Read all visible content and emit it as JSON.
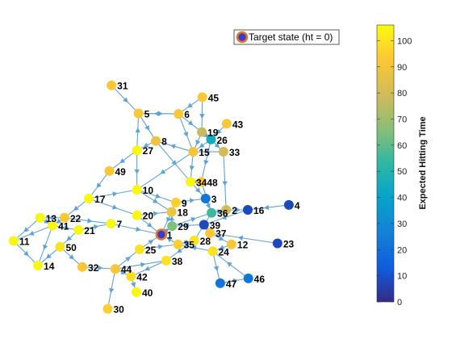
{
  "chart_data": {
    "type": "graph",
    "legend": {
      "label": "Target state (ht = 0)",
      "placement": "top-right"
    },
    "colorbar": {
      "label": "Expected  Hitting  Time",
      "min": 0,
      "max": 106,
      "ticks": [
        0,
        10,
        20,
        30,
        40,
        50,
        60,
        70,
        80,
        90,
        100
      ]
    },
    "nodes": [
      {
        "id": "1",
        "ht": 0,
        "x": -0.6,
        "y": -0.73
      },
      {
        "id": "2",
        "ht": 80,
        "x": 0.6,
        "y": -0.23
      },
      {
        "id": "3",
        "ht": 22,
        "x": 0.22,
        "y": 0.0
      },
      {
        "id": "4",
        "ht": 8,
        "x": 1.76,
        "y": -0.13
      },
      {
        "id": "5",
        "ht": 92,
        "x": -1.02,
        "y": 1.73
      },
      {
        "id": "6",
        "ht": 92,
        "x": -0.28,
        "y": 1.72
      },
      {
        "id": "7",
        "ht": 105,
        "x": -1.53,
        "y": -0.51
      },
      {
        "id": "8",
        "ht": 88,
        "x": -0.7,
        "y": 1.17
      },
      {
        "id": "9",
        "ht": 95,
        "x": -0.33,
        "y": -0.08
      },
      {
        "id": "10",
        "ht": 105,
        "x": -1.05,
        "y": 0.18
      },
      {
        "id": "11",
        "ht": 105,
        "x": -3.33,
        "y": -0.86
      },
      {
        "id": "12",
        "ht": 92,
        "x": 0.7,
        "y": -0.93
      },
      {
        "id": "13",
        "ht": 105,
        "x": -2.84,
        "y": -0.39
      },
      {
        "id": "14",
        "ht": 105,
        "x": -2.88,
        "y": -1.36
      },
      {
        "id": "15",
        "ht": 90,
        "x": -0.01,
        "y": 0.95
      },
      {
        "id": "16",
        "ht": 8,
        "x": 1.0,
        "y": -0.23
      },
      {
        "id": "17",
        "ht": 105,
        "x": -1.94,
        "y": 0.0
      },
      {
        "id": "18",
        "ht": 88,
        "x": -0.41,
        "y": -0.27
      },
      {
        "id": "19",
        "ht": 78,
        "x": 0.15,
        "y": 1.35
      },
      {
        "id": "20",
        "ht": 105,
        "x": -1.05,
        "y": -0.34
      },
      {
        "id": "21",
        "ht": 105,
        "x": -2.13,
        "y": -0.64
      },
      {
        "id": "22",
        "ht": 92,
        "x": -2.39,
        "y": -0.39
      },
      {
        "id": "23",
        "ht": 8,
        "x": 1.55,
        "y": -0.91
      },
      {
        "id": "24",
        "ht": 100,
        "x": 0.35,
        "y": -1.07
      },
      {
        "id": "25",
        "ht": 100,
        "x": -1.0,
        "y": -1.03
      },
      {
        "id": "26",
        "ht": 45,
        "x": 0.32,
        "y": 1.2
      },
      {
        "id": "27",
        "ht": 105,
        "x": -1.05,
        "y": 0.98
      },
      {
        "id": "28",
        "ht": 100,
        "x": 0.01,
        "y": -0.85
      },
      {
        "id": "29",
        "ht": 65,
        "x": -0.4,
        "y": -0.56
      },
      {
        "id": "30",
        "ht": 95,
        "x": -1.59,
        "y": -2.24
      },
      {
        "id": "31",
        "ht": 92,
        "x": -1.52,
        "y": 2.3
      },
      {
        "id": "32",
        "ht": 92,
        "x": -2.06,
        "y": -1.39
      },
      {
        "id": "33",
        "ht": 80,
        "x": 0.55,
        "y": 0.95
      },
      {
        "id": "34",
        "ht": 105,
        "x": -0.06,
        "y": 0.34
      },
      {
        "id": "35",
        "ht": 95,
        "x": -0.29,
        "y": -0.93
      },
      {
        "id": "36",
        "ht": 55,
        "x": 0.33,
        "y": -0.29
      },
      {
        "id": "37",
        "ht": 92,
        "x": 0.3,
        "y": -0.7
      },
      {
        "id": "38",
        "ht": 100,
        "x": -0.51,
        "y": -1.26
      },
      {
        "id": "39",
        "ht": 8,
        "x": 0.19,
        "y": -0.53
      },
      {
        "id": "40",
        "ht": 105,
        "x": -1.06,
        "y": -1.9
      },
      {
        "id": "41",
        "ht": 105,
        "x": -2.61,
        "y": -0.55
      },
      {
        "id": "42",
        "ht": 98,
        "x": -1.16,
        "y": -1.58
      },
      {
        "id": "43",
        "ht": 92,
        "x": 0.61,
        "y": 1.52
      },
      {
        "id": "44",
        "ht": 92,
        "x": -1.45,
        "y": -1.43
      },
      {
        "id": "45",
        "ht": 92,
        "x": 0.16,
        "y": 2.06
      },
      {
        "id": "46",
        "ht": 22,
        "x": 1.01,
        "y": -1.62
      },
      {
        "id": "47",
        "ht": 22,
        "x": 0.49,
        "y": -1.72
      },
      {
        "id": "48",
        "ht": 92,
        "x": 0.14,
        "y": 0.34
      },
      {
        "id": "49",
        "ht": 92,
        "x": -1.56,
        "y": 0.56
      },
      {
        "id": "50",
        "ht": 100,
        "x": -2.47,
        "y": -0.98
      }
    ],
    "edges": [
      [
        "31",
        "5"
      ],
      [
        "5",
        "6"
      ],
      [
        "6",
        "5"
      ],
      [
        "5",
        "8"
      ],
      [
        "8",
        "27"
      ],
      [
        "27",
        "5"
      ],
      [
        "6",
        "15"
      ],
      [
        "6",
        "19"
      ],
      [
        "45",
        "19"
      ],
      [
        "45",
        "6"
      ],
      [
        "19",
        "26"
      ],
      [
        "43",
        "26"
      ],
      [
        "26",
        "15"
      ],
      [
        "26",
        "48"
      ],
      [
        "26",
        "33"
      ],
      [
        "15",
        "8"
      ],
      [
        "15",
        "34"
      ],
      [
        "15",
        "10"
      ],
      [
        "27",
        "49"
      ],
      [
        "49",
        "17"
      ],
      [
        "27",
        "10"
      ],
      [
        "10",
        "9"
      ],
      [
        "10",
        "18"
      ],
      [
        "17",
        "20"
      ],
      [
        "17",
        "22"
      ],
      [
        "22",
        "13"
      ],
      [
        "22",
        "41"
      ],
      [
        "22",
        "7"
      ],
      [
        "7",
        "1"
      ],
      [
        "20",
        "1"
      ],
      [
        "20",
        "18"
      ],
      [
        "13",
        "11"
      ],
      [
        "13",
        "41"
      ],
      [
        "41",
        "11"
      ],
      [
        "41",
        "14"
      ],
      [
        "41",
        "21"
      ],
      [
        "21",
        "50"
      ],
      [
        "50",
        "14"
      ],
      [
        "11",
        "14"
      ],
      [
        "50",
        "32"
      ],
      [
        "32",
        "44"
      ],
      [
        "44",
        "30"
      ],
      [
        "44",
        "42"
      ],
      [
        "42",
        "40"
      ],
      [
        "44",
        "25"
      ],
      [
        "25",
        "35"
      ],
      [
        "35",
        "1"
      ],
      [
        "25",
        "1"
      ],
      [
        "1",
        "29"
      ],
      [
        "29",
        "36"
      ],
      [
        "29",
        "18"
      ],
      [
        "9",
        "3"
      ],
      [
        "3",
        "36"
      ],
      [
        "34",
        "3"
      ],
      [
        "48",
        "36"
      ],
      [
        "33",
        "2"
      ],
      [
        "36",
        "2"
      ],
      [
        "2",
        "16"
      ],
      [
        "4",
        "16"
      ],
      [
        "16",
        "39"
      ],
      [
        "39",
        "37"
      ],
      [
        "37",
        "12"
      ],
      [
        "12",
        "24"
      ],
      [
        "24",
        "47"
      ],
      [
        "47",
        "46"
      ],
      [
        "46",
        "24"
      ],
      [
        "23",
        "37"
      ],
      [
        "39",
        "29"
      ],
      [
        "28",
        "35"
      ],
      [
        "28",
        "38"
      ],
      [
        "38",
        "42"
      ],
      [
        "35",
        "28"
      ],
      [
        "24",
        "35"
      ],
      [
        "9",
        "1"
      ],
      [
        "48",
        "34"
      ],
      [
        "33",
        "15"
      ],
      [
        "19",
        "15"
      ],
      [
        "8",
        "34"
      ],
      [
        "17",
        "10"
      ],
      [
        "21",
        "7"
      ],
      [
        "44",
        "38"
      ],
      [
        "36",
        "28"
      ]
    ]
  }
}
